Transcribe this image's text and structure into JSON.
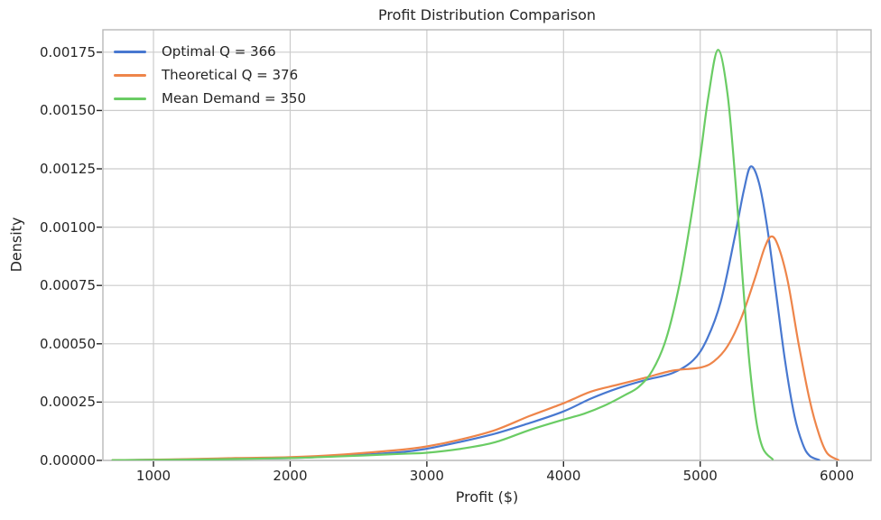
{
  "colors": {
    "background": "#ffffff",
    "text": "#262626",
    "grid": "#cccccc",
    "spine": "#b8b8b8",
    "tick": "#262626"
  },
  "chart_data": {
    "type": "line",
    "title": "Profit Distribution Comparison",
    "xlabel": "Profit ($)",
    "ylabel": "Density",
    "grid": true,
    "legend_position": "upper left",
    "xlim": [
      630,
      6250
    ],
    "ylim": [
      0,
      0.001846
    ],
    "x_ticks": {
      "values": [
        1000,
        2000,
        3000,
        4000,
        5000,
        6000
      ],
      "labels": [
        "1000",
        "2000",
        "3000",
        "4000",
        "5000",
        "6000"
      ]
    },
    "y_ticks": {
      "values": [
        0,
        0.00025,
        0.0005,
        0.00075,
        0.001,
        0.00125,
        0.0015,
        0.00175
      ],
      "labels": [
        "0.00000",
        "0.00025",
        "0.00050",
        "0.00075",
        "0.00100",
        "0.00125",
        "0.00150",
        "0.00175"
      ]
    },
    "series": [
      {
        "name": "Optimal Q = 366",
        "color": "#4878d0",
        "peak": {
          "x": 5370,
          "density": 0.00126
        },
        "points": [
          [
            700,
            1e-06
          ],
          [
            1200,
            4e-06
          ],
          [
            1600,
            8e-06
          ],
          [
            2000,
            1e-05
          ],
          [
            2400,
            2e-05
          ],
          [
            2800,
            3.5e-05
          ],
          [
            3000,
            5e-05
          ],
          [
            3250,
            8e-05
          ],
          [
            3500,
            0.000115
          ],
          [
            3750,
            0.00016
          ],
          [
            4000,
            0.00021
          ],
          [
            4200,
            0.000265
          ],
          [
            4400,
            0.00031
          ],
          [
            4600,
            0.000345
          ],
          [
            4800,
            0.000375
          ],
          [
            4950,
            0.00043
          ],
          [
            5050,
            0.00052
          ],
          [
            5150,
            0.00068
          ],
          [
            5250,
            0.00095
          ],
          [
            5320,
            0.00116
          ],
          [
            5370,
            0.00126
          ],
          [
            5430,
            0.00119
          ],
          [
            5490,
            0.001
          ],
          [
            5550,
            0.00074
          ],
          [
            5620,
            0.00043
          ],
          [
            5690,
            0.00019
          ],
          [
            5750,
            7e-05
          ],
          [
            5800,
            2e-05
          ],
          [
            5870,
            2e-06
          ]
        ]
      },
      {
        "name": "Theoretical Q = 376",
        "color": "#ee854a",
        "peak": {
          "x": 5520,
          "density": 0.00096
        },
        "points": [
          [
            700,
            1e-06
          ],
          [
            1200,
            5e-06
          ],
          [
            1600,
            1e-05
          ],
          [
            2000,
            1.4e-05
          ],
          [
            2400,
            2.6e-05
          ],
          [
            2800,
            4.5e-05
          ],
          [
            3000,
            6e-05
          ],
          [
            3250,
            9e-05
          ],
          [
            3500,
            0.00013
          ],
          [
            3750,
            0.00019
          ],
          [
            4000,
            0.000245
          ],
          [
            4200,
            0.000295
          ],
          [
            4400,
            0.000325
          ],
          [
            4600,
            0.000355
          ],
          [
            4800,
            0.000385
          ],
          [
            5000,
            0.000398
          ],
          [
            5100,
            0.000425
          ],
          [
            5200,
            0.00049
          ],
          [
            5300,
            0.00061
          ],
          [
            5400,
            0.00078
          ],
          [
            5470,
            0.00091
          ],
          [
            5520,
            0.00096
          ],
          [
            5570,
            0.00092
          ],
          [
            5640,
            0.00077
          ],
          [
            5720,
            0.0005
          ],
          [
            5800,
            0.00026
          ],
          [
            5870,
            0.00011
          ],
          [
            5930,
            3e-05
          ],
          [
            6010,
            2e-06
          ]
        ]
      },
      {
        "name": "Mean Demand = 350",
        "color": "#6acc64",
        "peak": {
          "x": 5130,
          "density": 0.00176
        },
        "points": [
          [
            700,
            1e-06
          ],
          [
            1200,
            3e-06
          ],
          [
            1600,
            6e-06
          ],
          [
            2000,
            1e-05
          ],
          [
            2400,
            1.8e-05
          ],
          [
            2800,
            2.8e-05
          ],
          [
            3000,
            3.3e-05
          ],
          [
            3250,
            5e-05
          ],
          [
            3500,
            7.8e-05
          ],
          [
            3750,
            0.00013
          ],
          [
            4000,
            0.000175
          ],
          [
            4150,
            0.0002
          ],
          [
            4300,
            0.000235
          ],
          [
            4450,
            0.00028
          ],
          [
            4550,
            0.000315
          ],
          [
            4650,
            0.000385
          ],
          [
            4750,
            0.00052
          ],
          [
            4850,
            0.00076
          ],
          [
            4930,
            0.00103
          ],
          [
            5000,
            0.0013
          ],
          [
            5060,
            0.00156
          ],
          [
            5130,
            0.00176
          ],
          [
            5200,
            0.00157
          ],
          [
            5260,
            0.00118
          ],
          [
            5310,
            0.00078
          ],
          [
            5360,
            0.00042
          ],
          [
            5410,
            0.00017
          ],
          [
            5460,
            5e-05
          ],
          [
            5530,
            5e-06
          ]
        ]
      }
    ]
  }
}
